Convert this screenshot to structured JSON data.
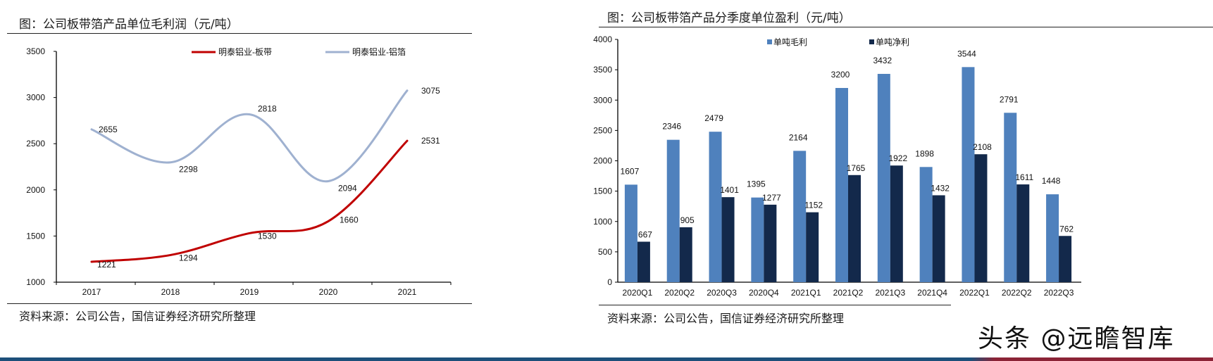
{
  "left_panel": {
    "title": "图：公司板带箔产品单位毛利润（元/吨）",
    "source": "资料来源：公司公告，国信证券经济研究所整理"
  },
  "right_panel": {
    "title": "图：公司板带箔产品分季度单位盈利（元/吨）",
    "source": "资料来源：公司公告，国信证券经济研究所整理"
  },
  "watermark": "头条 @远瞻智库",
  "colors": {
    "series_red": "#c00000",
    "series_lightblue": "#9fb1d0",
    "bar_gross": "#4f81bd",
    "bar_net": "#13294b",
    "band_blue": "#1d4f7a",
    "band_red": "#8b2336"
  },
  "chart_data": [
    {
      "type": "line",
      "title": "图：公司板带箔产品单位毛利润（元/吨）",
      "xlabel": "",
      "ylabel": "",
      "categories": [
        "2017",
        "2018",
        "2019",
        "2020",
        "2021"
      ],
      "series": [
        {
          "name": "明泰铝业-板带",
          "color": "#c00000",
          "values": [
            1221,
            1294,
            1530,
            1660,
            2531
          ]
        },
        {
          "name": "明泰铝业-铝箔",
          "color": "#9fb1d0",
          "values": [
            2655,
            2298,
            2818,
            2094,
            3075
          ]
        }
      ],
      "yticks": [
        1000,
        1500,
        2000,
        2500,
        3000,
        3500
      ],
      "ylim": [
        1000,
        3500
      ],
      "grid": false,
      "legend_position": "top"
    },
    {
      "type": "bar",
      "title": "图：公司板带箔产品分季度单位盈利（元/吨）",
      "xlabel": "",
      "ylabel": "",
      "categories": [
        "2020Q1",
        "2020Q2",
        "2020Q3",
        "2020Q4",
        "2021Q1",
        "2021Q2",
        "2021Q3",
        "2021Q4",
        "2022Q1",
        "2022Q2",
        "2022Q3"
      ],
      "series": [
        {
          "name": "单吨毛利",
          "color": "#4f81bd",
          "values": [
            1607,
            2346,
            2479,
            1395,
            2164,
            3200,
            3432,
            1898,
            3544,
            2791,
            1448
          ]
        },
        {
          "name": "单吨净利",
          "color": "#13294b",
          "values": [
            667,
            905,
            1401,
            1277,
            1152,
            1765,
            1922,
            1432,
            2108,
            1611,
            762
          ]
        }
      ],
      "yticks": [
        0,
        500,
        1000,
        1500,
        2000,
        2500,
        3000,
        3500,
        4000
      ],
      "ylim": [
        0,
        4000
      ],
      "grid": false,
      "legend_position": "top"
    }
  ]
}
